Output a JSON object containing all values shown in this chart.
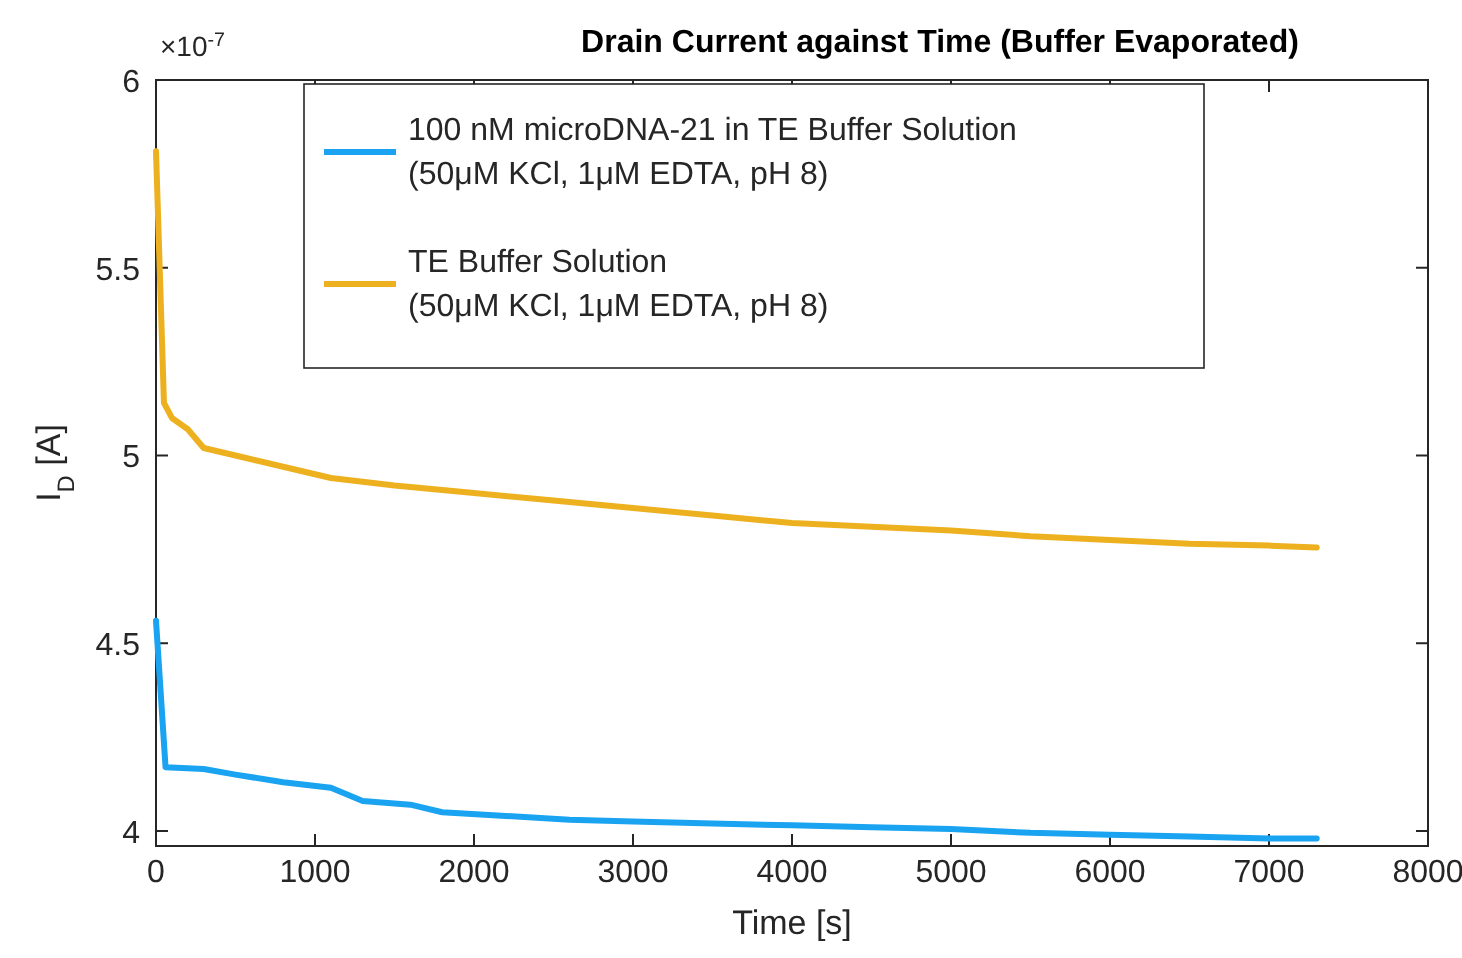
{
  "chart_data": {
    "type": "line",
    "title": "Drain Current against Time (Buffer Evaporated)",
    "xlabel": "Time [s]",
    "ylabel": "I$_{D}$ [A]",
    "annotations": [
      "×10$^{-7}$"
    ],
    "xlim": [
      0,
      8000
    ],
    "xticks": [
      0,
      1000,
      2000,
      3000,
      4000,
      5000,
      6000,
      7000,
      8000
    ],
    "ylim": [
      3.96,
      6
    ],
    "yticks": [
      4,
      4.5,
      5,
      5.5,
      6
    ],
    "grid": false,
    "legend": "top",
    "line_style": "solid",
    "marker": "none",
    "series": [
      {
        "name": "100 nM microDNA-21 in TE Buffer Solution\n(50μM KCl, 1μM EDTA, pH 8)",
        "color": "#1aa3f0",
        "x": [
          0,
          60,
          300,
          500,
          800,
          1100,
          1300,
          1600,
          1800,
          2200,
          2600,
          3000,
          3500,
          4000,
          4500,
          5000,
          5500,
          6000,
          6500,
          7000,
          7300
        ],
        "values": [
          4.56,
          4.17,
          4.165,
          4.15,
          4.13,
          4.115,
          4.08,
          4.07,
          4.05,
          4.04,
          4.03,
          4.025,
          4.02,
          4.015,
          4.01,
          4.005,
          3.995,
          3.99,
          3.985,
          3.98,
          3.98
        ]
      },
      {
        "name": "TE Buffer Solution\n(50μM KCl, 1μM EDTA, pH 8)",
        "color": "#edb120",
        "x": [
          0,
          50,
          100,
          200,
          300,
          500,
          800,
          1100,
          1500,
          2000,
          2500,
          3000,
          3500,
          4000,
          4500,
          5000,
          5500,
          6000,
          6500,
          7000,
          7300
        ],
        "values": [
          5.81,
          5.14,
          5.1,
          5.07,
          5.02,
          5.0,
          4.97,
          4.94,
          4.92,
          4.9,
          4.88,
          4.86,
          4.84,
          4.82,
          4.81,
          4.8,
          4.785,
          4.775,
          4.765,
          4.76,
          4.755
        ]
      }
    ]
  }
}
